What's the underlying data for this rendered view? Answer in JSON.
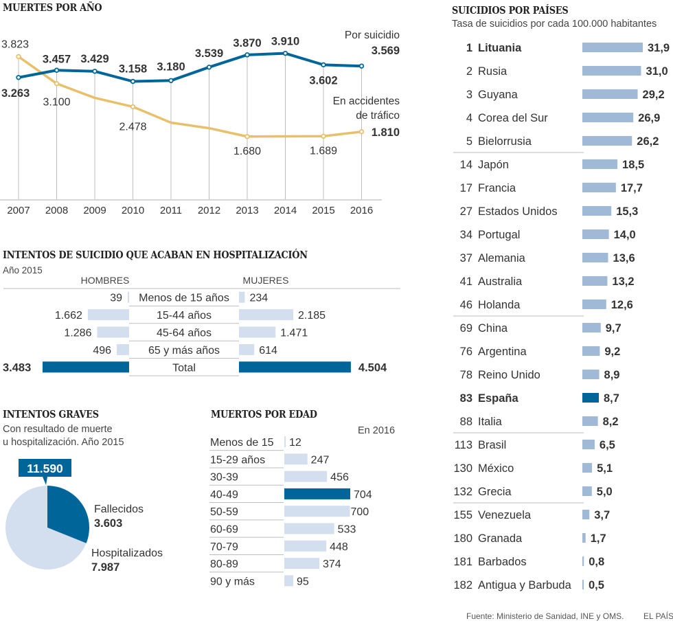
{
  "colors": {
    "dark_blue": "#00669a",
    "light_blue": "#9fb9d6",
    "pale_blue": "#d3dfee",
    "gold": "#e8c06a",
    "grid": "#bdbdbd",
    "text": "#333333"
  },
  "chart_data": [
    {
      "id": "muertes_por_ano",
      "type": "line",
      "title": "MUERTES POR AÑO",
      "x": [
        "2007",
        "2008",
        "2009",
        "2010",
        "2011",
        "2012",
        "2013",
        "2014",
        "2015",
        "2016"
      ],
      "ylim": [
        0,
        5340
      ],
      "grid": "vertical",
      "series": [
        {
          "name": "Por suicidio",
          "values": [
            3263,
            3457,
            3429,
            3158,
            3180,
            3539,
            3870,
            3910,
            3602,
            3569
          ],
          "labels": [
            "3.263",
            "3.457",
            "3.429",
            "3.158",
            "3.180",
            "3.539",
            "3.870",
            "3.910",
            "3.602",
            "3.569"
          ],
          "legend": "Por suicidio",
          "final_label": "3.569"
        },
        {
          "name": "En accidentes de tráfico",
          "values": [
            3823,
            3100,
            2717,
            2478,
            2052,
            1904,
            1680,
            1684,
            1689,
            1810
          ],
          "labels": [
            "3.823",
            "3.100",
            "",
            "2.478",
            "",
            "",
            "1.680",
            "",
            "1.689",
            "1.810"
          ],
          "legend_line1": "En accidentes",
          "legend_line2": "de tráfico",
          "final_label": "1.810"
        }
      ]
    },
    {
      "id": "intentos_hospitalizacion",
      "type": "bar",
      "title": "INTENTOS DE SUICIDIO QUE ACABAN EN HOSPITALIZACIÓN",
      "subtitle": "Año 2015",
      "left_header": "HOMBRES",
      "right_header": "MUJERES",
      "categories": [
        "Menos de 15 años",
        "15-44 años",
        "45-64 años",
        "65 y más años",
        "Total"
      ],
      "series": [
        {
          "name": "Hombres",
          "values": [
            39,
            1662,
            1286,
            496,
            3483
          ],
          "labels": [
            "39",
            "1.662",
            "1.286",
            "496",
            "3.483"
          ]
        },
        {
          "name": "Mujeres",
          "values": [
            234,
            2185,
            1471,
            614,
            4504
          ],
          "labels": [
            "234",
            "2.185",
            "1.471",
            "614",
            "4.504"
          ]
        }
      ]
    },
    {
      "id": "intentos_graves",
      "type": "pie",
      "title": "INTENTOS GRAVES",
      "subtitle_line1": "Con resultado de muerte",
      "subtitle_line2": "u hospitalización. Año 2015",
      "total_label": "11.590",
      "categories": [
        "Fallecidos",
        "Hospitalizados"
      ],
      "values": [
        3603,
        7987
      ],
      "labels": [
        "3.603",
        "7.987"
      ]
    },
    {
      "id": "muertos_por_edad",
      "type": "bar",
      "title": "MUERTOS POR EDAD",
      "note": "En 2016",
      "categories": [
        "Menos de 15",
        "15-29 años",
        "30-39",
        "40-49",
        "50-59",
        "60-69",
        "70-79",
        "80-89",
        "90 y más"
      ],
      "values": [
        12,
        247,
        456,
        704,
        700,
        533,
        448,
        374,
        95
      ],
      "highlight": "40-49"
    },
    {
      "id": "suicidios_por_paises",
      "type": "bar",
      "title": "SUICIDIOS POR PAÍSES",
      "subtitle": "Tasa de suicidios por cada 100.000 habitantes",
      "highlight": "España",
      "rows": [
        {
          "rank": "1",
          "country": "Lituania",
          "value": 31.9,
          "label": "31,9",
          "bold": true
        },
        {
          "rank": "2",
          "country": "Rusia",
          "value": 31.0,
          "label": "31,0"
        },
        {
          "rank": "3",
          "country": "Guyana",
          "value": 29.2,
          "label": "29,2"
        },
        {
          "rank": "4",
          "country": "Corea del Sur",
          "value": 26.9,
          "label": "26,9"
        },
        {
          "rank": "5",
          "country": "Bielorrusia",
          "value": 26.2,
          "label": "26,2",
          "divider": true
        },
        {
          "rank": "14",
          "country": "Japón",
          "value": 18.5,
          "label": "18,5"
        },
        {
          "rank": "17",
          "country": "Francia",
          "value": 17.7,
          "label": "17,7"
        },
        {
          "rank": "27",
          "country": "Estados Unidos",
          "value": 15.3,
          "label": "15,3"
        },
        {
          "rank": "34",
          "country": "Portugal",
          "value": 14.0,
          "label": "14,0"
        },
        {
          "rank": "37",
          "country": "Alemania",
          "value": 13.6,
          "label": "13,6"
        },
        {
          "rank": "41",
          "country": "Australia",
          "value": 13.2,
          "label": "13,2"
        },
        {
          "rank": "46",
          "country": "Holanda",
          "value": 12.6,
          "label": "12,6",
          "divider": true
        },
        {
          "rank": "69",
          "country": "China",
          "value": 9.7,
          "label": "9,7"
        },
        {
          "rank": "76",
          "country": "Argentina",
          "value": 9.2,
          "label": "9,2"
        },
        {
          "rank": "78",
          "country": "Reino Unido",
          "value": 8.9,
          "label": "8,9"
        },
        {
          "rank": "83",
          "country": "España",
          "value": 8.7,
          "label": "8,7",
          "bold": true,
          "highlight": true
        },
        {
          "rank": "88",
          "country": "Italia",
          "value": 8.2,
          "label": "8,2",
          "divider": true
        },
        {
          "rank": "113",
          "country": "Brasil",
          "value": 6.5,
          "label": "6,5"
        },
        {
          "rank": "130",
          "country": "México",
          "value": 5.1,
          "label": "5,1"
        },
        {
          "rank": "132",
          "country": "Grecia",
          "value": 5.0,
          "label": "5,0",
          "divider": true
        },
        {
          "rank": "155",
          "country": "Venezuela",
          "value": 3.7,
          "label": "3,7"
        },
        {
          "rank": "180",
          "country": "Granada",
          "value": 1.7,
          "label": "1,7"
        },
        {
          "rank": "181",
          "country": "Barbados",
          "value": 0.8,
          "label": "0,8"
        },
        {
          "rank": "182",
          "country": "Antigua y Barbuda",
          "value": 0.5,
          "label": "0,5"
        }
      ]
    }
  ],
  "footer": {
    "source": "Fuente: Ministerio de Sanidad, INE y OMS.",
    "brand": "EL PAÍS"
  }
}
